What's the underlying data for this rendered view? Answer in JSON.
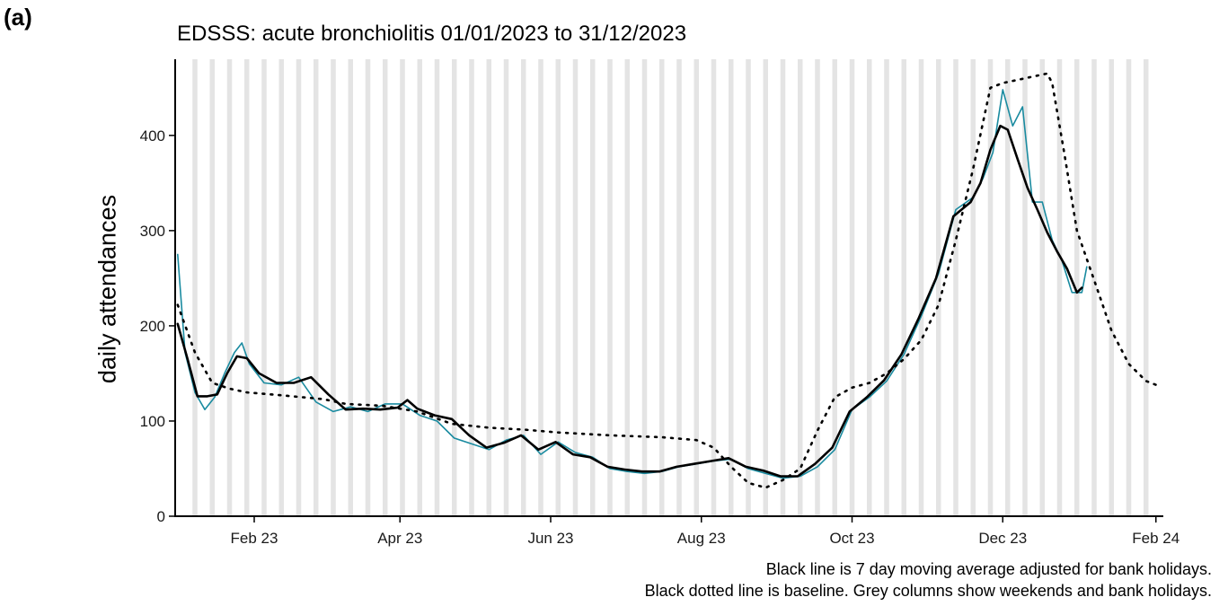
{
  "panel_label": "(a)",
  "caption": {
    "line1": "Black line is 7 day moving average adjusted for bank holidays.",
    "line2": "Black dotted line is baseline. Grey columns show weekends and bank holidays."
  },
  "colors": {
    "daily": "#1a8ba0",
    "moving_average": "#000000",
    "baseline": "#000000",
    "weekend_columns": "#e4e4e4",
    "axis": "#000000"
  },
  "chart_data": {
    "type": "line",
    "title": "EDSSS: acute bronchiolitis 01/01/2023 to 31/12/2023",
    "xlabel": "",
    "ylabel": "daily attendances",
    "xlim": [
      "2022-12-31",
      "2024-02-04"
    ],
    "ylim": [
      0,
      480
    ],
    "x_ticks": [
      {
        "date": "2023-02-01",
        "label": "Feb 23"
      },
      {
        "date": "2023-04-01",
        "label": "Apr 23"
      },
      {
        "date": "2023-06-01",
        "label": "Jun 23"
      },
      {
        "date": "2023-08-01",
        "label": "Aug 23"
      },
      {
        "date": "2023-10-01",
        "label": "Oct 23"
      },
      {
        "date": "2023-12-01",
        "label": "Dec 23"
      },
      {
        "date": "2024-02-01",
        "label": "Feb 24"
      }
    ],
    "y_ticks": [
      0,
      100,
      200,
      300,
      400
    ],
    "grid": false,
    "weekend_columns": {
      "first_weekend": "2023-01-07",
      "last_weekend": "2024-01-27"
    },
    "series": [
      {
        "style": "line",
        "points": [
          [
            "2023-01-01",
            275
          ],
          [
            "2023-01-04",
            172
          ],
          [
            "2023-01-08",
            130
          ],
          [
            "2023-01-12",
            112
          ],
          [
            "2023-01-16",
            125
          ],
          [
            "2023-01-20",
            150
          ],
          [
            "2023-01-24",
            172
          ],
          [
            "2023-01-27",
            182
          ],
          [
            "2023-01-30",
            160
          ],
          [
            "2023-02-05",
            140
          ],
          [
            "2023-02-12",
            138
          ],
          [
            "2023-02-19",
            146
          ],
          [
            "2023-02-26",
            120
          ],
          [
            "2023-03-05",
            110
          ],
          [
            "2023-03-12",
            115
          ],
          [
            "2023-03-19",
            110
          ],
          [
            "2023-03-26",
            118
          ],
          [
            "2023-04-02",
            118
          ],
          [
            "2023-04-09",
            106
          ],
          [
            "2023-04-16",
            100
          ],
          [
            "2023-04-23",
            82
          ],
          [
            "2023-04-30",
            76
          ],
          [
            "2023-05-07",
            70
          ],
          [
            "2023-05-14",
            80
          ],
          [
            "2023-05-21",
            85
          ],
          [
            "2023-05-28",
            65
          ],
          [
            "2023-06-04",
            78
          ],
          [
            "2023-06-11",
            67
          ],
          [
            "2023-06-18",
            62
          ],
          [
            "2023-06-25",
            50
          ],
          [
            "2023-07-02",
            47
          ],
          [
            "2023-07-09",
            45
          ],
          [
            "2023-07-16",
            47
          ],
          [
            "2023-07-23",
            52
          ],
          [
            "2023-07-30",
            55
          ],
          [
            "2023-08-06",
            58
          ],
          [
            "2023-08-13",
            60
          ],
          [
            "2023-08-20",
            50
          ],
          [
            "2023-08-27",
            45
          ],
          [
            "2023-09-03",
            40
          ],
          [
            "2023-09-10",
            42
          ],
          [
            "2023-09-17",
            52
          ],
          [
            "2023-09-24",
            70
          ],
          [
            "2023-10-01",
            112
          ],
          [
            "2023-10-08",
            125
          ],
          [
            "2023-10-15",
            142
          ],
          [
            "2023-10-22",
            170
          ],
          [
            "2023-10-29",
            210
          ],
          [
            "2023-11-05",
            255
          ],
          [
            "2023-11-12",
            322
          ],
          [
            "2023-11-19",
            335
          ],
          [
            "2023-11-23",
            355
          ],
          [
            "2023-11-27",
            382
          ],
          [
            "2023-12-01",
            448
          ],
          [
            "2023-12-05",
            410
          ],
          [
            "2023-12-09",
            430
          ],
          [
            "2023-12-13",
            330
          ],
          [
            "2023-12-17",
            330
          ],
          [
            "2023-12-21",
            290
          ],
          [
            "2023-12-25",
            268
          ],
          [
            "2023-12-29",
            235
          ],
          [
            "2024-01-02",
            235
          ],
          [
            "2024-01-04",
            262
          ]
        ]
      },
      {
        "style": "solid",
        "points": [
          [
            "2023-01-01",
            202
          ],
          [
            "2023-01-05",
            165
          ],
          [
            "2023-01-09",
            126
          ],
          [
            "2023-01-13",
            126
          ],
          [
            "2023-01-17",
            128
          ],
          [
            "2023-01-21",
            150
          ],
          [
            "2023-01-25",
            168
          ],
          [
            "2023-01-29",
            166
          ],
          [
            "2023-02-03",
            150
          ],
          [
            "2023-02-10",
            140
          ],
          [
            "2023-02-17",
            140
          ],
          [
            "2023-02-24",
            146
          ],
          [
            "2023-03-03",
            128
          ],
          [
            "2023-03-10",
            112
          ],
          [
            "2023-03-17",
            113
          ],
          [
            "2023-03-24",
            112
          ],
          [
            "2023-03-31",
            114
          ],
          [
            "2023-04-04",
            122
          ],
          [
            "2023-04-08",
            113
          ],
          [
            "2023-04-15",
            106
          ],
          [
            "2023-04-22",
            102
          ],
          [
            "2023-04-29",
            85
          ],
          [
            "2023-05-06",
            72
          ],
          [
            "2023-05-13",
            77
          ],
          [
            "2023-05-20",
            85
          ],
          [
            "2023-05-27",
            70
          ],
          [
            "2023-06-03",
            78
          ],
          [
            "2023-06-10",
            65
          ],
          [
            "2023-06-17",
            62
          ],
          [
            "2023-06-24",
            52
          ],
          [
            "2023-07-01",
            49
          ],
          [
            "2023-07-08",
            47
          ],
          [
            "2023-07-15",
            47
          ],
          [
            "2023-07-22",
            52
          ],
          [
            "2023-07-29",
            55
          ],
          [
            "2023-08-05",
            58
          ],
          [
            "2023-08-12",
            61
          ],
          [
            "2023-08-19",
            52
          ],
          [
            "2023-08-26",
            48
          ],
          [
            "2023-09-02",
            42
          ],
          [
            "2023-09-09",
            42
          ],
          [
            "2023-09-16",
            55
          ],
          [
            "2023-09-23",
            72
          ],
          [
            "2023-09-30",
            110
          ],
          [
            "2023-10-07",
            125
          ],
          [
            "2023-10-14",
            143
          ],
          [
            "2023-10-21",
            170
          ],
          [
            "2023-10-28",
            208
          ],
          [
            "2023-11-04",
            250
          ],
          [
            "2023-11-11",
            315
          ],
          [
            "2023-11-18",
            330
          ],
          [
            "2023-11-22",
            350
          ],
          [
            "2023-11-26",
            385
          ],
          [
            "2023-11-30",
            410
          ],
          [
            "2023-12-03",
            406
          ],
          [
            "2023-12-07",
            375
          ],
          [
            "2023-12-11",
            345
          ],
          [
            "2023-12-15",
            322
          ],
          [
            "2023-12-19",
            298
          ],
          [
            "2023-12-23",
            278
          ],
          [
            "2023-12-27",
            260
          ],
          [
            "2023-12-31",
            235
          ],
          [
            "2024-01-02",
            240
          ]
        ]
      },
      {
        "style": "dotted",
        "points": [
          [
            "2023-01-01",
            222
          ],
          [
            "2023-01-08",
            172
          ],
          [
            "2023-01-15",
            140
          ],
          [
            "2023-01-22",
            134
          ],
          [
            "2023-01-29",
            130
          ],
          [
            "2023-02-12",
            127
          ],
          [
            "2023-03-01",
            123
          ],
          [
            "2023-03-10",
            118
          ],
          [
            "2023-03-25",
            116
          ],
          [
            "2023-04-08",
            110
          ],
          [
            "2023-04-22",
            97
          ],
          [
            "2023-05-07",
            93
          ],
          [
            "2023-05-21",
            91
          ],
          [
            "2023-06-04",
            88
          ],
          [
            "2023-06-25",
            85
          ],
          [
            "2023-07-16",
            83
          ],
          [
            "2023-07-30",
            80
          ],
          [
            "2023-08-06",
            72
          ],
          [
            "2023-08-13",
            52
          ],
          [
            "2023-08-20",
            35
          ],
          [
            "2023-08-27",
            30
          ],
          [
            "2023-09-03",
            38
          ],
          [
            "2023-09-10",
            50
          ],
          [
            "2023-09-17",
            90
          ],
          [
            "2023-09-24",
            125
          ],
          [
            "2023-10-01",
            135
          ],
          [
            "2023-10-08",
            140
          ],
          [
            "2023-10-15",
            150
          ],
          [
            "2023-10-22",
            165
          ],
          [
            "2023-10-29",
            185
          ],
          [
            "2023-11-05",
            222
          ],
          [
            "2023-11-12",
            290
          ],
          [
            "2023-11-19",
            365
          ],
          [
            "2023-11-26",
            450
          ],
          [
            "2023-12-01",
            455
          ],
          [
            "2023-12-10",
            460
          ],
          [
            "2023-12-19",
            465
          ],
          [
            "2023-12-21",
            455
          ],
          [
            "2023-12-26",
            380
          ],
          [
            "2023-12-31",
            300
          ],
          [
            "2024-01-07",
            248
          ],
          [
            "2024-01-14",
            195
          ],
          [
            "2024-01-21",
            160
          ],
          [
            "2024-01-28",
            142
          ],
          [
            "2024-02-01",
            138
          ]
        ]
      }
    ]
  }
}
